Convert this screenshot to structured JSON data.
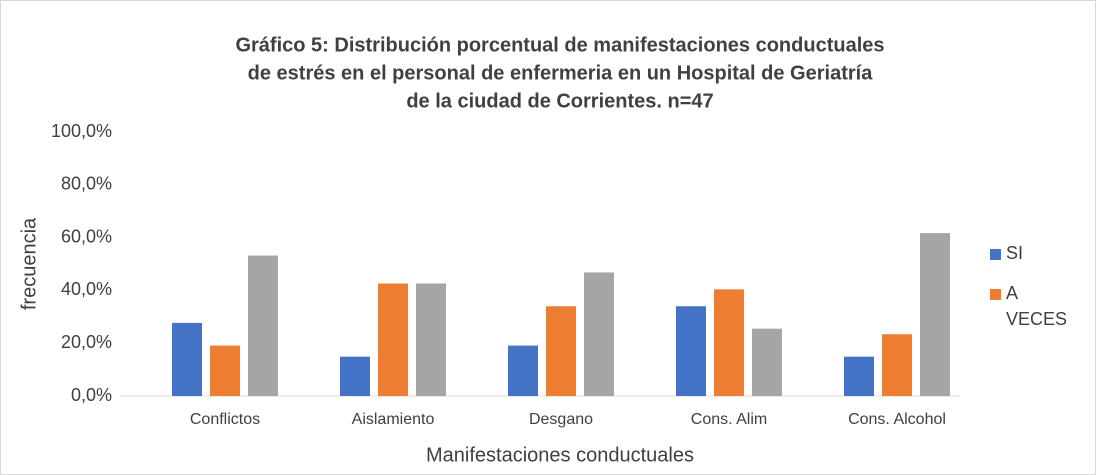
{
  "chart_data": {
    "type": "bar",
    "title": [
      "Gráfico 5: Distribución porcentual de manifestaciones conductuales",
      "de estrés en el personal de enfermeria en un Hospital de Geriatría",
      "de la ciudad de Corrientes. n=47"
    ],
    "xlabel": "Manifestaciones conductuales",
    "ylabel": "frecuencia",
    "categories": [
      "Conflictos",
      "Aislamiento",
      "Desgano",
      "Cons. Alim",
      "Cons. Alcohol"
    ],
    "series": [
      {
        "name": "SI",
        "color": "#4472c4",
        "values": [
          27.7,
          14.9,
          19.1,
          34.0,
          14.9
        ]
      },
      {
        "name": "A VECES",
        "color": "#ed7d31",
        "values": [
          19.1,
          42.6,
          34.0,
          40.4,
          23.4
        ]
      },
      {
        "color": "#a5a5a5",
        "values": [
          53.2,
          42.6,
          46.8,
          25.5,
          61.7
        ]
      }
    ],
    "ylim": [
      0,
      100
    ],
    "yticks": [
      {
        "value": 0,
        "label": "0,0%"
      },
      {
        "value": 20,
        "label": "20,0%"
      },
      {
        "value": 40,
        "label": "40,0%"
      },
      {
        "value": 60,
        "label": "60,0%"
      },
      {
        "value": 80,
        "label": "80,0%"
      },
      {
        "value": 100,
        "label": "100,0%"
      }
    ],
    "grid": false,
    "legend": "right"
  }
}
